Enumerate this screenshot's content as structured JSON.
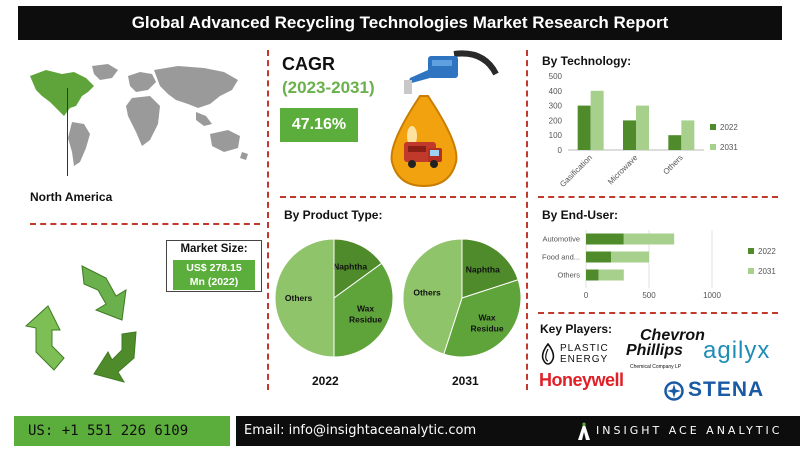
{
  "header": {
    "title": "Global Advanced Recycling Technologies Market Research Report"
  },
  "region": {
    "label": "North America"
  },
  "market_size": {
    "title": "Market Size:",
    "value_line1": "US$ 278.15",
    "value_line2": "Mn (2022)"
  },
  "cagr": {
    "label": "CAGR",
    "period": "(2023-2031)",
    "value": "47.16%"
  },
  "sections": {
    "by_product": "By Product Type:",
    "by_technology": "By Technology:",
    "by_end_user": "By  End-User:",
    "key_players": "Key Players:"
  },
  "logos": {
    "plastic_energy": [
      "PLASTIC",
      "ENERGY"
    ],
    "chevron_phillips": [
      "Chevron",
      "Phillips",
      "Chemical Company LP"
    ],
    "agilyx": "agilyx",
    "honeywell": "Honeywell",
    "stena": "STENA"
  },
  "footer": {
    "phone": "US: +1 551 226 6109",
    "email": "Email: info@insightaceanalytic.com",
    "brand": "INSIGHT ACE ANALYTIC"
  },
  "colors": {
    "dark_green": "#4f8a2b",
    "mid_green": "#6ab04c",
    "light_green": "#a8d08d",
    "accent_red": "#c0392b",
    "title_bg": "#0d0d0d"
  },
  "icons": [
    "world-map-icon",
    "recycle-arrows-icon",
    "fuel-nozzle-truck-icon",
    "plastic-energy-logo-icon",
    "stena-logo-icon",
    "insight-ace-logo-icon"
  ],
  "chart_data": [
    {
      "type": "bar",
      "title": "By Technology:",
      "categories": [
        "Gasification",
        "Microwave",
        "Others"
      ],
      "series": [
        {
          "name": "2022",
          "values": [
            300,
            200,
            100
          ],
          "color": "#4f8a2b"
        },
        {
          "name": "2031",
          "values": [
            400,
            300,
            200
          ],
          "color": "#a8d08d"
        }
      ],
      "ylim": [
        0,
        500
      ],
      "yticks": [
        0,
        100,
        200,
        300,
        400,
        500
      ],
      "legend": "right",
      "grid": false
    },
    {
      "type": "bar",
      "orientation": "horizontal",
      "stacked": true,
      "title": "By  End-User:",
      "categories": [
        "Automotive",
        "Food and...",
        "Others"
      ],
      "series": [
        {
          "name": "2022",
          "values": [
            300,
            200,
            100
          ],
          "color": "#4f8a2b"
        },
        {
          "name": "2031",
          "values": [
            400,
            300,
            200
          ],
          "color": "#a8d08d"
        }
      ],
      "xlim": [
        0,
        1000
      ],
      "xticks": [
        0,
        500,
        1000
      ],
      "legend": "right",
      "grid": true
    },
    {
      "type": "pie",
      "label": "2022",
      "slices": [
        {
          "name": "Naphtha",
          "value": 15,
          "color": "#4f8a2b"
        },
        {
          "name": "Wax Residue",
          "value": 35,
          "color": "#5fa43a"
        },
        {
          "name": "Others",
          "value": 50,
          "color": "#8fc46a"
        }
      ]
    },
    {
      "type": "pie",
      "label": "2031",
      "slices": [
        {
          "name": "Naphtha",
          "value": 20,
          "color": "#4f8a2b"
        },
        {
          "name": "Wax Residue",
          "value": 35,
          "color": "#5fa43a"
        },
        {
          "name": "Others",
          "value": 45,
          "color": "#8fc46a"
        }
      ]
    }
  ]
}
